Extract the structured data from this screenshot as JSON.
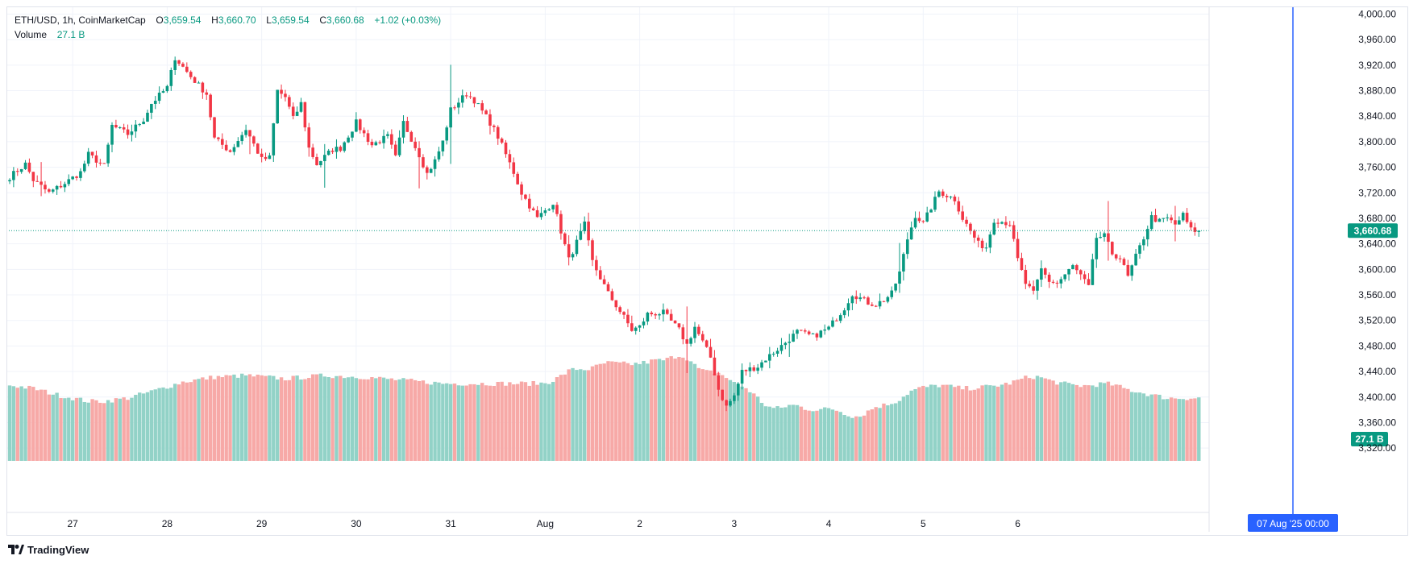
{
  "header": {
    "symbol": "ETH/USD, 1h, CoinMarketCap",
    "o_label": "O",
    "o_value": "3,659.54",
    "h_label": "H",
    "h_value": "3,660.70",
    "l_label": "L",
    "l_value": "3,659.54",
    "c_label": "C",
    "c_value": "3,660.68",
    "change": "+1.02 (+0.03%)",
    "volume_label": "Volume",
    "volume_value": "27.1 B"
  },
  "branding": {
    "name": "TradingView",
    "icon": "tradingview-logo-icon"
  },
  "colors": {
    "up": "#089981",
    "down": "#f23645",
    "vol_up": "#92d2c7",
    "vol_down": "#f7a9a7",
    "crosshair": "#2962ff",
    "grid": "#f0f3fa"
  },
  "price_badge": "3,660.68",
  "volume_badge": "27.1 B",
  "crosshair_label": "07 Aug '25   00:00",
  "chart_data": {
    "type": "candlestick",
    "interval": "1h",
    "x_ticks": [
      "27",
      "28",
      "29",
      "30",
      "31",
      "Aug",
      "2",
      "3",
      "4",
      "5",
      "6"
    ],
    "y_ticks": [
      "4,000.00",
      "3,960.00",
      "3,920.00",
      "3,880.00",
      "3,840.00",
      "3,800.00",
      "3,760.00",
      "3,720.00",
      "3,680.00",
      "3,640.00",
      "3,600.00",
      "3,560.00",
      "3,520.00",
      "3,480.00",
      "3,440.00",
      "3,400.00",
      "3,360.00",
      "3,320.00"
    ],
    "ylim": [
      3300,
      4012
    ],
    "last_price": 3660.68,
    "last_volume": "27.1 B",
    "volume_range_B": [
      0,
      100
    ],
    "grid": true,
    "anchors": [
      [
        0,
        3745
      ],
      [
        4,
        3765
      ],
      [
        6,
        3740
      ],
      [
        10,
        3720
      ],
      [
        14,
        3735
      ],
      [
        18,
        3752
      ],
      [
        20,
        3780
      ],
      [
        24,
        3762
      ],
      [
        26,
        3825
      ],
      [
        30,
        3812
      ],
      [
        34,
        3835
      ],
      [
        36,
        3860
      ],
      [
        40,
        3885
      ],
      [
        42,
        3932
      ],
      [
        46,
        3902
      ],
      [
        50,
        3875
      ],
      [
        52,
        3805
      ],
      [
        56,
        3785
      ],
      [
        60,
        3820
      ],
      [
        64,
        3772
      ],
      [
        66,
        3775
      ],
      [
        68,
        3880
      ],
      [
        70,
        3870
      ],
      [
        72,
        3836
      ],
      [
        74,
        3860
      ],
      [
        76,
        3790
      ],
      [
        78,
        3765
      ],
      [
        82,
        3788
      ],
      [
        84,
        3790
      ],
      [
        88,
        3830
      ],
      [
        90,
        3812
      ],
      [
        92,
        3795
      ],
      [
        96,
        3808
      ],
      [
        98,
        3775
      ],
      [
        100,
        3830
      ],
      [
        104,
        3780
      ],
      [
        106,
        3750
      ],
      [
        108,
        3770
      ],
      [
        110,
        3800
      ],
      [
        112,
        3850
      ],
      [
        116,
        3875
      ],
      [
        118,
        3865
      ],
      [
        122,
        3830
      ],
      [
        124,
        3808
      ],
      [
        128,
        3752
      ],
      [
        130,
        3720
      ],
      [
        134,
        3680
      ],
      [
        138,
        3705
      ],
      [
        142,
        3615
      ],
      [
        146,
        3670
      ],
      [
        148,
        3612
      ],
      [
        152,
        3562
      ],
      [
        156,
        3525
      ],
      [
        158,
        3505
      ],
      [
        160,
        3510
      ],
      [
        162,
        3530
      ],
      [
        166,
        3532
      ],
      [
        170,
        3505
      ],
      [
        172,
        3482
      ],
      [
        174,
        3510
      ],
      [
        178,
        3462
      ],
      [
        180,
        3412
      ],
      [
        182,
        3385
      ],
      [
        184,
        3402
      ],
      [
        186,
        3440
      ],
      [
        190,
        3448
      ],
      [
        192,
        3460
      ],
      [
        196,
        3480
      ],
      [
        200,
        3502
      ],
      [
        204,
        3495
      ],
      [
        208,
        3508
      ],
      [
        212,
        3540
      ],
      [
        214,
        3562
      ],
      [
        218,
        3548
      ],
      [
        220,
        3545
      ],
      [
        222,
        3552
      ],
      [
        224,
        3562
      ],
      [
        226,
        3595
      ],
      [
        228,
        3648
      ],
      [
        230,
        3685
      ],
      [
        232,
        3672
      ],
      [
        236,
        3722
      ],
      [
        240,
        3710
      ],
      [
        242,
        3680
      ],
      [
        244,
        3660
      ],
      [
        246,
        3640
      ],
      [
        248,
        3635
      ],
      [
        250,
        3678
      ],
      [
        254,
        3672
      ],
      [
        256,
        3615
      ],
      [
        258,
        3578
      ],
      [
        260,
        3562
      ],
      [
        262,
        3600
      ],
      [
        264,
        3582
      ],
      [
        266,
        3578
      ],
      [
        270,
        3605
      ],
      [
        272,
        3590
      ],
      [
        274,
        3572
      ],
      [
        276,
        3650
      ],
      [
        278,
        3652
      ],
      [
        280,
        3625
      ],
      [
        282,
        3618
      ],
      [
        284,
        3588
      ],
      [
        286,
        3620
      ],
      [
        288,
        3650
      ],
      [
        290,
        3682
      ],
      [
        292,
        3675
      ],
      [
        294,
        3680
      ],
      [
        296,
        3670
      ],
      [
        298,
        3685
      ],
      [
        300,
        3662
      ],
      [
        302,
        3660
      ]
    ],
    "volume_profile": [
      [
        0,
        32
      ],
      [
        6,
        30
      ],
      [
        12,
        26
      ],
      [
        20,
        22
      ],
      [
        24,
        22
      ],
      [
        30,
        24
      ],
      [
        36,
        28
      ],
      [
        44,
        34
      ],
      [
        52,
        37
      ],
      [
        60,
        38
      ],
      [
        70,
        36
      ],
      [
        80,
        38
      ],
      [
        90,
        37
      ],
      [
        100,
        35
      ],
      [
        110,
        33
      ],
      [
        118,
        33
      ],
      [
        128,
        33
      ],
      [
        136,
        33
      ],
      [
        140,
        34
      ],
      [
        148,
        38
      ],
      [
        156,
        44
      ],
      [
        164,
        47
      ],
      [
        172,
        40
      ],
      [
        178,
        33
      ],
      [
        184,
        26
      ],
      [
        190,
        25
      ],
      [
        196,
        21
      ],
      [
        204,
        23
      ],
      [
        210,
        19
      ],
      [
        216,
        16
      ],
      [
        220,
        19
      ],
      [
        226,
        20
      ],
      [
        232,
        26
      ],
      [
        240,
        29
      ],
      [
        248,
        31
      ],
      [
        256,
        33
      ],
      [
        262,
        35
      ],
      [
        270,
        32
      ],
      [
        278,
        30
      ],
      [
        286,
        28
      ],
      [
        294,
        24
      ],
      [
        302,
        24
      ]
    ],
    "volume_events": [
      [
        143,
        6
      ],
      [
        151,
        5
      ],
      [
        171,
        9
      ],
      [
        180,
        8
      ],
      [
        186,
        5
      ],
      [
        193,
        -5
      ],
      [
        204,
        -6
      ],
      [
        214,
        -4
      ],
      [
        229,
        5
      ],
      [
        236,
        4
      ],
      [
        259,
        3
      ],
      [
        279,
        3
      ]
    ]
  }
}
